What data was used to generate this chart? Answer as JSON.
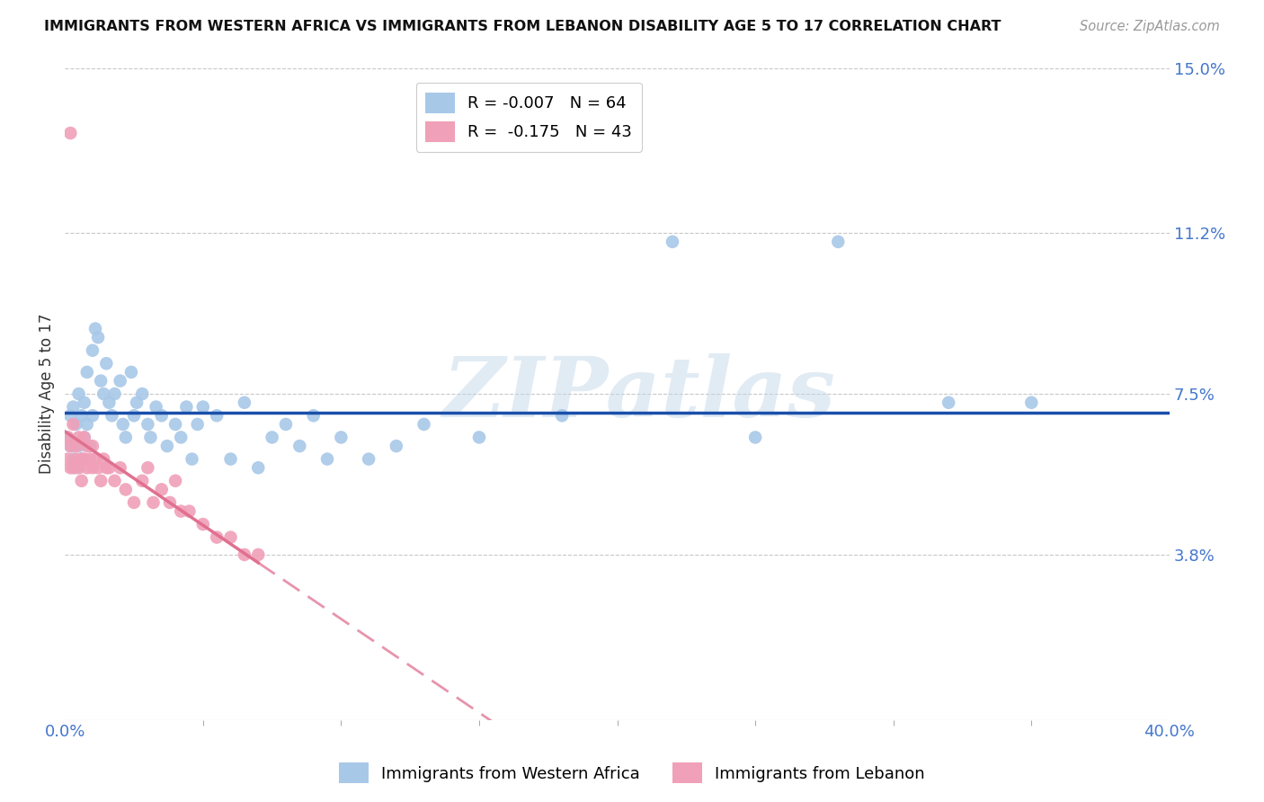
{
  "title": "IMMIGRANTS FROM WESTERN AFRICA VS IMMIGRANTS FROM LEBANON DISABILITY AGE 5 TO 17 CORRELATION CHART",
  "source": "Source: ZipAtlas.com",
  "ylabel": "Disability Age 5 to 17",
  "xlim": [
    0.0,
    0.4
  ],
  "ylim": [
    0.0,
    0.15
  ],
  "ytick_labels": [
    "15.0%",
    "11.2%",
    "7.5%",
    "3.8%"
  ],
  "ytick_values": [
    0.15,
    0.112,
    0.075,
    0.038
  ],
  "background_color": "#ffffff",
  "grid_color": "#c8c8c8",
  "watermark_text": "ZIPatlas",
  "series1_color": "#a8c8e8",
  "series2_color": "#f0a0b8",
  "trendline1_color": "#1a4faa",
  "trendline2_color": "#e07090",
  "legend1_label": "R = -0.007   N = 64",
  "legend2_label": "R =  -0.175   N = 43",
  "bottom_legend1": "Immigrants from Western Africa",
  "bottom_legend2": "Immigrants from Lebanon",
  "wa_x": [
    0.001,
    0.002,
    0.002,
    0.003,
    0.003,
    0.004,
    0.004,
    0.005,
    0.005,
    0.006,
    0.006,
    0.007,
    0.007,
    0.008,
    0.008,
    0.009,
    0.01,
    0.01,
    0.011,
    0.012,
    0.013,
    0.014,
    0.015,
    0.016,
    0.017,
    0.018,
    0.02,
    0.021,
    0.022,
    0.024,
    0.025,
    0.026,
    0.028,
    0.03,
    0.031,
    0.033,
    0.035,
    0.037,
    0.04,
    0.042,
    0.044,
    0.046,
    0.048,
    0.05,
    0.055,
    0.06,
    0.065,
    0.07,
    0.075,
    0.08,
    0.085,
    0.09,
    0.095,
    0.1,
    0.11,
    0.12,
    0.13,
    0.15,
    0.18,
    0.22,
    0.25,
    0.28,
    0.32,
    0.35
  ],
  "wa_y": [
    0.065,
    0.07,
    0.063,
    0.072,
    0.06,
    0.068,
    0.058,
    0.075,
    0.063,
    0.07,
    0.06,
    0.073,
    0.065,
    0.08,
    0.068,
    0.063,
    0.085,
    0.07,
    0.09,
    0.088,
    0.078,
    0.075,
    0.082,
    0.073,
    0.07,
    0.075,
    0.078,
    0.068,
    0.065,
    0.08,
    0.07,
    0.073,
    0.075,
    0.068,
    0.065,
    0.072,
    0.07,
    0.063,
    0.068,
    0.065,
    0.072,
    0.06,
    0.068,
    0.072,
    0.07,
    0.06,
    0.073,
    0.058,
    0.065,
    0.068,
    0.063,
    0.07,
    0.06,
    0.065,
    0.06,
    0.063,
    0.068,
    0.065,
    0.07,
    0.11,
    0.065,
    0.11,
    0.073,
    0.073
  ],
  "lb_x": [
    0.001,
    0.001,
    0.002,
    0.002,
    0.003,
    0.003,
    0.004,
    0.004,
    0.005,
    0.005,
    0.006,
    0.006,
    0.007,
    0.007,
    0.008,
    0.008,
    0.009,
    0.01,
    0.01,
    0.011,
    0.012,
    0.013,
    0.014,
    0.015,
    0.016,
    0.018,
    0.02,
    0.022,
    0.025,
    0.028,
    0.03,
    0.032,
    0.035,
    0.038,
    0.04,
    0.042,
    0.045,
    0.05,
    0.055,
    0.06,
    0.065,
    0.07,
    0.002
  ],
  "lb_y": [
    0.065,
    0.06,
    0.063,
    0.058,
    0.068,
    0.058,
    0.063,
    0.06,
    0.065,
    0.058,
    0.06,
    0.055,
    0.065,
    0.06,
    0.063,
    0.058,
    0.06,
    0.063,
    0.058,
    0.06,
    0.058,
    0.055,
    0.06,
    0.058,
    0.058,
    0.055,
    0.058,
    0.053,
    0.05,
    0.055,
    0.058,
    0.05,
    0.053,
    0.05,
    0.055,
    0.048,
    0.048,
    0.045,
    0.042,
    0.042,
    0.038,
    0.038,
    0.135
  ]
}
